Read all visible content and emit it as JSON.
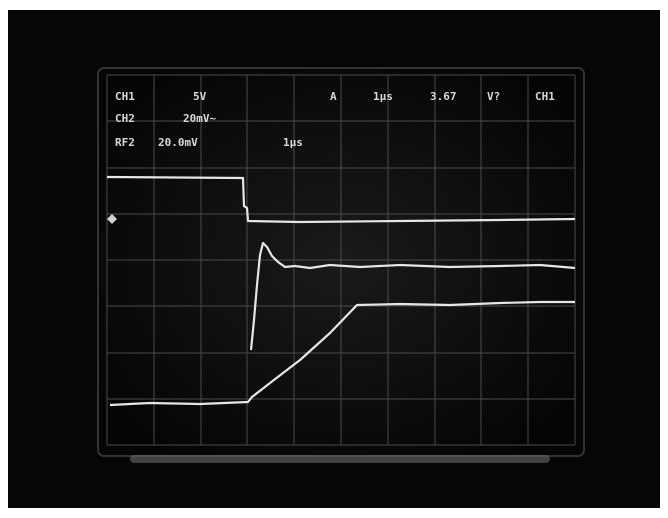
{
  "readout": {
    "rows": [
      [
        "CH1",
        "5V",
        "A",
        "1µs",
        "3.67",
        "V?",
        "CH1"
      ],
      [
        "CH2",
        "20mV~"
      ],
      [
        "RF2",
        "20.0mV",
        "1µs"
      ]
    ]
  }
}
